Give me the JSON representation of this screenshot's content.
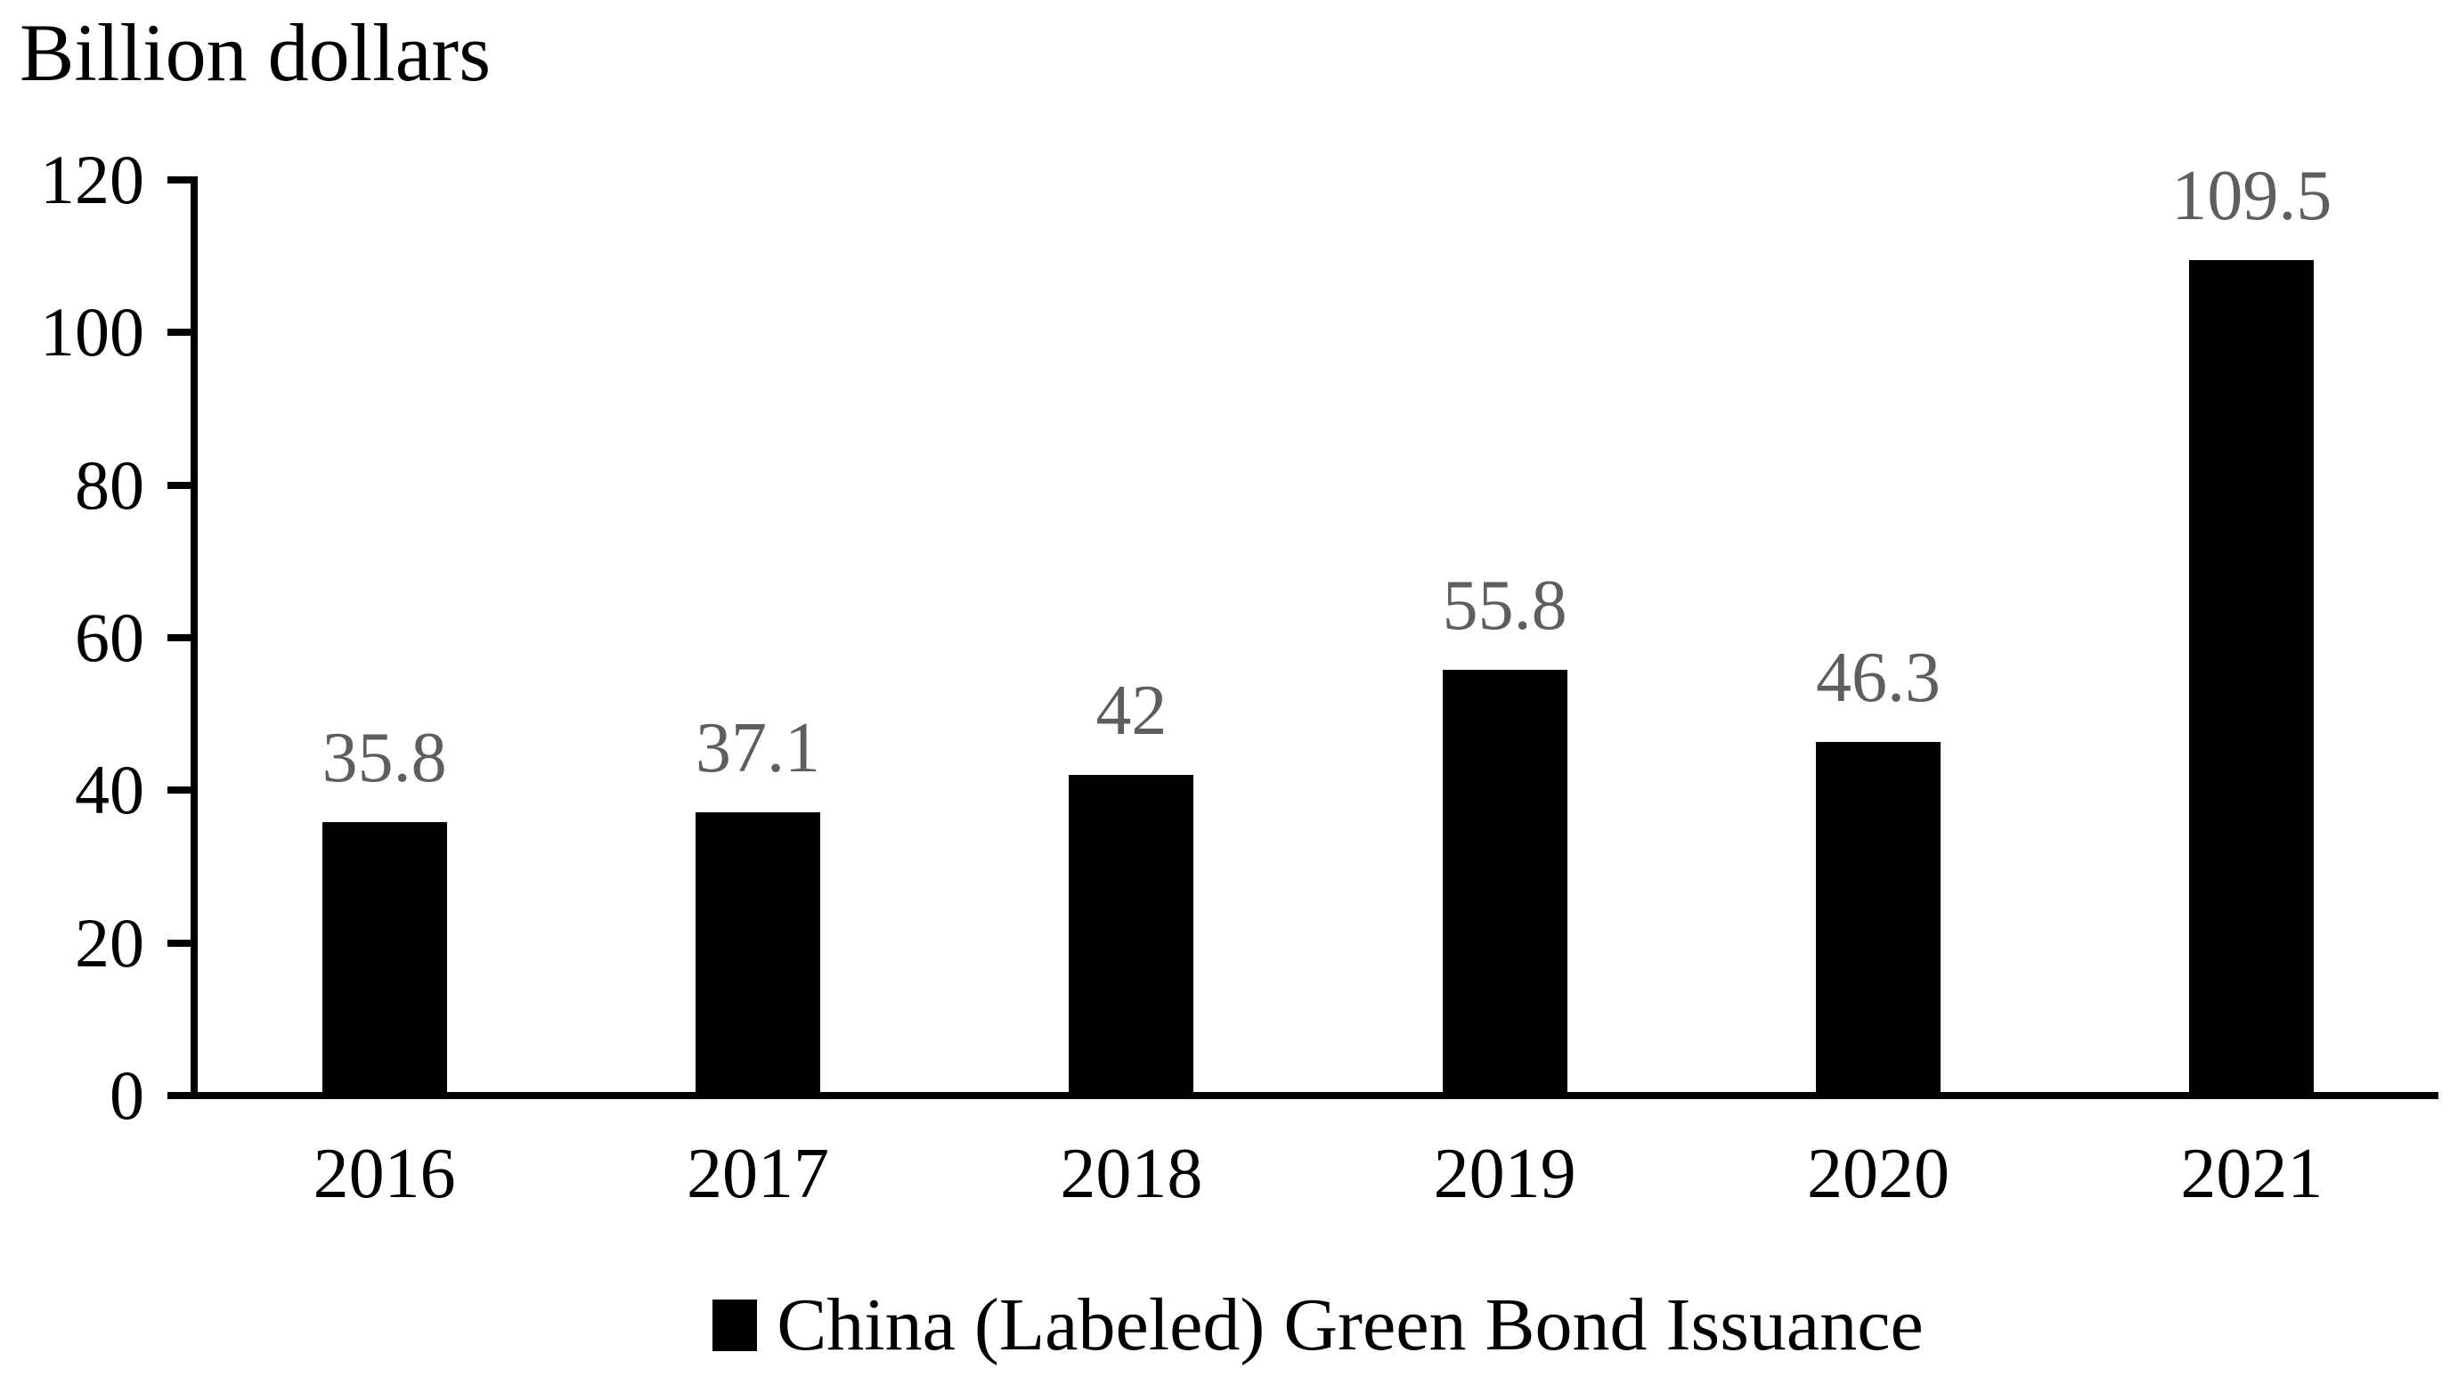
{
  "figure_title": "Billion dollars",
  "colors": {
    "bar": "#000000",
    "axis": "#000000",
    "data_label": "#5e5e5e",
    "background": "#ffffff"
  },
  "legend": {
    "label": "China (Labeled) Green Bond Issuance",
    "marker_color": "#000000",
    "position": "bottom"
  },
  "chart_data": {
    "type": "bar",
    "title": "Billion dollars",
    "categories": [
      "2016",
      "2017",
      "2018",
      "2019",
      "2020",
      "2021"
    ],
    "series": [
      {
        "name": "China (Labeled) Green Bond Issuance",
        "values": [
          35.8,
          37.1,
          42,
          55.8,
          46.3,
          109.5
        ],
        "value_labels": [
          "35.8",
          "37.1",
          "42",
          "55.8",
          "46.3",
          "109.5"
        ],
        "color": "#000000"
      }
    ],
    "xlabel": "",
    "ylabel": "Billion dollars",
    "ylim": [
      0,
      120
    ],
    "yticks": [
      0,
      20,
      40,
      60,
      80,
      100,
      120
    ],
    "ytick_labels": [
      "0",
      "20",
      "40",
      "60",
      "80",
      "100",
      "120"
    ],
    "grid": false,
    "data_labels_shown": true,
    "legend_position": "bottom"
  }
}
